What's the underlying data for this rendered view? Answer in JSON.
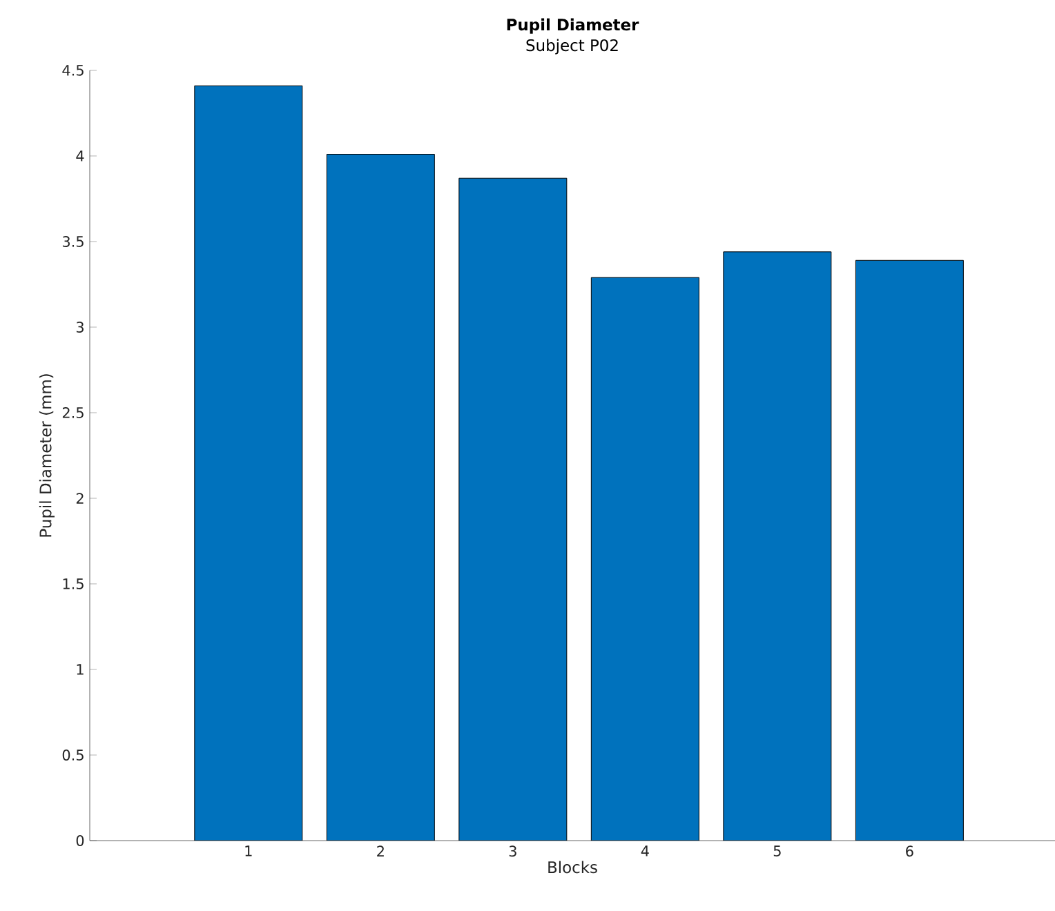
{
  "chart_data": {
    "type": "bar",
    "title": "Pupil Diameter",
    "subtitle": "Subject P02",
    "xlabel": "Blocks",
    "ylabel": "Pupil Diameter (mm)",
    "categories": [
      "1",
      "2",
      "3",
      "4",
      "5",
      "6"
    ],
    "values": [
      4.41,
      4.01,
      3.87,
      3.29,
      3.44,
      3.39
    ],
    "color": "#0072bd",
    "ylim": [
      0,
      4.5
    ],
    "yticks": [
      0,
      0.5,
      1,
      1.5,
      2,
      2.5,
      3,
      3.5,
      4,
      4.5
    ]
  }
}
